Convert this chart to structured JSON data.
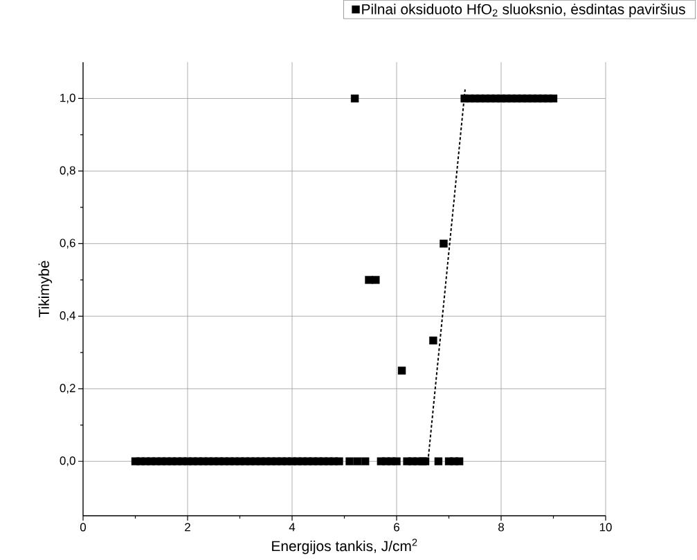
{
  "chart_data": {
    "type": "scatter",
    "xlabel": "Energijos tankis, J/cm$^{2}$",
    "ylabel": "Tikimybė",
    "xlim": [
      0,
      10
    ],
    "ylim": [
      -0.15,
      1.1
    ],
    "xticks": [
      0,
      2,
      4,
      6,
      8,
      10
    ],
    "yticks": [
      {
        "value": 0,
        "label": "0,0"
      },
      {
        "value": 0.2,
        "label": "0,2"
      },
      {
        "value": 0.4,
        "label": "0,4"
      },
      {
        "value": 0.6,
        "label": "0,6"
      },
      {
        "value": 0.8,
        "label": "0,8"
      },
      {
        "value": 1,
        "label": "1,0"
      }
    ],
    "grid": true,
    "legend": "top right",
    "marker": "square",
    "series": [
      {
        "name": "Pilnai oksiduoto HfO$_{2}$ sluoksnio, ėsdintas paviršius",
        "color": "#000000",
        "x": [
          1.0,
          1.1,
          1.2,
          1.3,
          1.4,
          1.5,
          1.6,
          1.7,
          1.8,
          1.9,
          2.0,
          2.1,
          2.2,
          2.3,
          2.4,
          2.5,
          2.6,
          2.7,
          2.8,
          2.9,
          3.0,
          3.1,
          3.2,
          3.3,
          3.4,
          3.5,
          3.6,
          3.7,
          3.8,
          3.9,
          4.0,
          4.1,
          4.2,
          4.3,
          4.4,
          4.5,
          4.6,
          4.7,
          4.8,
          4.9,
          5.1,
          5.25,
          5.4,
          5.7,
          5.8,
          5.9,
          6.0,
          6.2,
          6.3,
          6.4,
          6.5,
          6.55,
          6.8,
          7.0,
          7.1,
          7.2,
          5.2,
          5.47,
          5.6,
          6.1,
          6.7,
          6.9,
          7.3,
          7.4,
          7.5,
          7.6,
          7.7,
          7.8,
          7.9,
          8.0,
          8.1,
          8.2,
          8.3,
          8.4,
          8.5,
          8.6,
          8.7,
          8.8,
          8.9,
          9.0
        ],
        "values": [
          0,
          0,
          0,
          0,
          0,
          0,
          0,
          0,
          0,
          0,
          0,
          0,
          0,
          0,
          0,
          0,
          0,
          0,
          0,
          0,
          0,
          0,
          0,
          0,
          0,
          0,
          0,
          0,
          0,
          0,
          0,
          0,
          0,
          0,
          0,
          0,
          0,
          0,
          0,
          0,
          0,
          0,
          0,
          0,
          0,
          0,
          0,
          0,
          0,
          0,
          0,
          0,
          0,
          0,
          0,
          0,
          1,
          0.5,
          0.5,
          0.25,
          0.333,
          0.6,
          1,
          1,
          1,
          1,
          1,
          1,
          1,
          1,
          1,
          1,
          1,
          1,
          1,
          1,
          1,
          1,
          1,
          1
        ]
      },
      {
        "type": "line",
        "line_style": "dashed",
        "marker": "none",
        "color": "#000000",
        "x": [
          6.6,
          7.31
        ],
        "values": [
          0,
          1.025
        ]
      }
    ]
  }
}
